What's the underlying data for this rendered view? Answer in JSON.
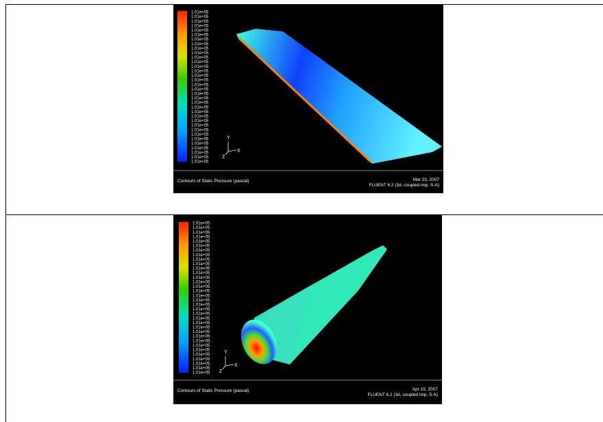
{
  "rows": [
    {
      "legend_labels": [
        "1.01e+05",
        "1.01e+05",
        "1.01e+05",
        "1.01e+05",
        "1.01e+05",
        "1.01e+05",
        "1.01e+05",
        "1.01e+05",
        "1.01e+05",
        "1.01e+05",
        "1.01e+05",
        "1.01e+05",
        "1.01e+05",
        "1.01e+05",
        "1.01e+05",
        "1.01e+05",
        "1.01e+05",
        "1.01e+05",
        "1.01e+05",
        "1.01e+05",
        "1.01e+05",
        "1.01e+05",
        "1.01e+05",
        "1.01e+05",
        "1.01e+05",
        "1.01e+05",
        "1.01e+05",
        "1.01e+05",
        "1.01e+05",
        "1.01e+05",
        "1.01e+05",
        "1.01e+05",
        "1.01e+05",
        "1.01e+05"
      ],
      "axis_labels": [
        "Y",
        "X",
        "Z"
      ],
      "caption": "Contours of Static Pressure (pascal)",
      "date": "Mar 23, 2007",
      "solver": "FLUENT 6.2 (3d, coupled imp, S-A)"
    },
    {
      "legend_labels": [
        "1.01e+05",
        "1.01e+05",
        "1.01e+05",
        "1.01e+05",
        "1.01e+05",
        "1.01e+05",
        "1.01e+05",
        "1.01e+05",
        "1.01e+05",
        "1.01e+05",
        "1.01e+05",
        "1.01e+05",
        "1.01e+05",
        "1.01e+05",
        "1.01e+05",
        "1.01e+05",
        "1.01e+05",
        "1.01e+05",
        "1.01e+05",
        "1.01e+05",
        "1.01e+05",
        "1.01e+05",
        "1.01e+05",
        "1.01e+05",
        "1.01e+05",
        "1.01e+05",
        "1.01e+05",
        "1.01e+05",
        "1.01e+05",
        "1.01e+05",
        "1.01e+05",
        "1.01e+05",
        "1.01e+05",
        "1.01e+05"
      ],
      "axis_labels": [
        "Y",
        "X",
        "Z"
      ],
      "caption": "Contours of Static Pressure (pascal)",
      "date": "Apr 15, 2007",
      "solver": "FLUENT 6.2 (3d, coupled imp, S-A)"
    }
  ]
}
